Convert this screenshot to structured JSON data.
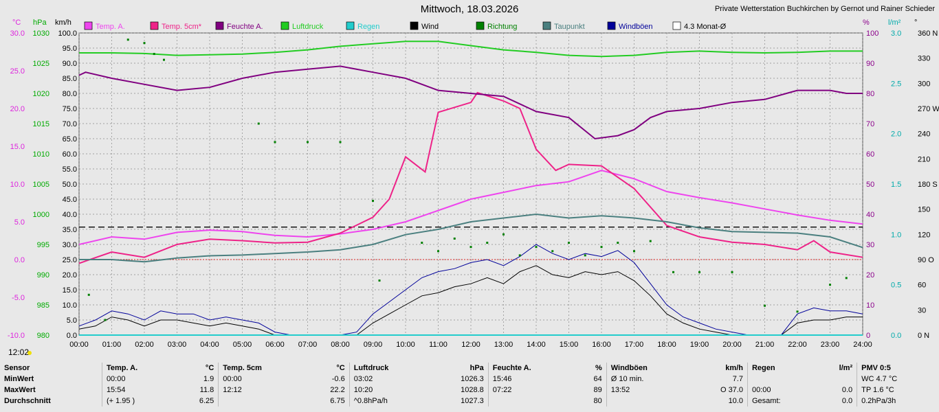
{
  "title": "Mittwoch, 18.03.2026",
  "station": "Private Wetterstation Buchkirchen by Gernot und Rainer Schieder",
  "current_time": "12:02",
  "chart_data": {
    "type": "line",
    "axes": {
      "left_units": [
        "°C",
        "hPa",
        "km/h"
      ],
      "right_units": [
        "%",
        "l/m²",
        "°"
      ],
      "temp": {
        "min": -10,
        "max": 30,
        "ticks": [
          30.0,
          25.0,
          20.0,
          15.0,
          10.0,
          5.0,
          0.0,
          -5.0,
          -10.0
        ],
        "color": "#dd22dd"
      },
      "pressure": {
        "min": 980,
        "max": 1030,
        "ticks": [
          1030,
          1025,
          1020,
          1015,
          1010,
          1005,
          1000,
          995,
          990,
          985,
          980
        ],
        "color": "#00aa00"
      },
      "wind": {
        "min": 0,
        "max": 100,
        "ticks": [
          100.0,
          95.0,
          90.0,
          85.0,
          80.0,
          75.0,
          70.0,
          65.0,
          60.0,
          55.0,
          50.0,
          45.0,
          40.0,
          35.0,
          30.0,
          25.0,
          20.0,
          15.0,
          10.0,
          5.0,
          0.0
        ],
        "color": "#000000"
      },
      "humidity": {
        "min": 0,
        "max": 100,
        "ticks": [
          100,
          90,
          80,
          70,
          60,
          50,
          40,
          30,
          20,
          10,
          0
        ],
        "color": "#8b008b"
      },
      "rain": {
        "min": 0,
        "max": 3,
        "ticks": [
          "3.0",
          "2.5",
          "2.0",
          "1.5",
          "1.0",
          "0.5",
          "0.0"
        ],
        "color": "#00aaaa"
      },
      "direction": {
        "min": 0,
        "max": 360,
        "ticks": [
          "360 N",
          "330",
          "300",
          "270 W",
          "240",
          "210",
          "180 S",
          "150",
          "120",
          "90 O",
          "60",
          "30",
          "0 N"
        ],
        "color": "#006600"
      },
      "x_ticks": [
        "00:00",
        "01:00",
        "02:00",
        "03:00",
        "04:00",
        "05:00",
        "06:00",
        "07:00",
        "08:00",
        "09:00",
        "10:00",
        "11:00",
        "12:00",
        "13:00",
        "14:00",
        "15:00",
        "16:00",
        "17:00",
        "18:00",
        "19:00",
        "20:00",
        "21:00",
        "22:00",
        "23:00",
        "24:00"
      ],
      "grid": true
    },
    "legend": [
      {
        "name": "Temp. A.",
        "color": "#ee44ee"
      },
      {
        "name": "Temp. 5cm*",
        "color": "#ee2288"
      },
      {
        "name": "Feuchte A.",
        "color": "#800080"
      },
      {
        "name": "Luftdruck",
        "color": "#22cc22"
      },
      {
        "name": "Regen",
        "color": "#22cccc"
      },
      {
        "name": "Wind",
        "color": "#000000"
      },
      {
        "name": "Richtung",
        "color": "#008000"
      },
      {
        "name": "Taupunkt",
        "color": "#4a7f7f"
      },
      {
        "name": "Windböen",
        "color": "#000099"
      },
      {
        "name": "4.3 Monat-Ø",
        "color": "#ffffff"
      }
    ],
    "reference_lines": [
      {
        "name": "4.3 Monat-Ø",
        "temp": 4.3
      },
      {
        "name": "0 °C",
        "temp": 0
      }
    ],
    "series": [
      {
        "name": "Temp. A.",
        "axis": "temp",
        "color": "#ee44ee",
        "x": [
          0,
          1,
          2,
          3,
          4,
          5,
          6,
          7,
          8,
          9,
          10,
          11,
          12,
          13,
          14,
          15,
          16,
          17,
          18,
          19,
          20,
          21,
          22,
          23,
          24
        ],
        "y": [
          2.0,
          3.0,
          2.7,
          3.6,
          3.9,
          3.7,
          3.2,
          3.0,
          3.4,
          4.0,
          5.0,
          6.5,
          8.0,
          8.9,
          9.8,
          10.3,
          11.8,
          10.7,
          9.0,
          8.2,
          7.5,
          6.7,
          5.9,
          5.2,
          4.7
        ]
      },
      {
        "name": "Temp. 5cm*",
        "axis": "temp",
        "color": "#ee2288",
        "x": [
          0,
          1,
          2,
          3,
          4,
          5,
          6,
          7,
          8,
          9,
          9.5,
          10,
          10.6,
          11,
          12,
          12.2,
          13,
          13.5,
          14,
          14.6,
          15,
          16,
          17,
          18,
          19,
          20,
          21,
          22,
          22.5,
          23,
          24
        ],
        "y": [
          -0.5,
          1.0,
          0.3,
          2.0,
          2.7,
          2.5,
          2.2,
          2.3,
          3.5,
          5.6,
          8.0,
          13.6,
          11.6,
          19.5,
          20.8,
          22.1,
          21.0,
          20.0,
          14.6,
          11.8,
          12.6,
          12.4,
          9.4,
          4.5,
          3.0,
          2.3,
          2.0,
          1.3,
          2.5,
          1.0,
          0.3
        ]
      },
      {
        "name": "Feuchte A.",
        "axis": "humidity",
        "color": "#800080",
        "x": [
          0,
          0.2,
          1,
          2,
          3,
          4,
          5,
          6,
          7,
          8,
          9,
          10,
          11,
          12,
          13,
          14,
          15,
          15.8,
          16.5,
          17,
          17.5,
          18,
          19,
          20,
          21,
          22,
          23,
          23.5,
          24
        ],
        "y": [
          86,
          87,
          85,
          83,
          81,
          82,
          85,
          87,
          88,
          89,
          87,
          85,
          81,
          80,
          79,
          74,
          72,
          65,
          66,
          68,
          72,
          74,
          75,
          77,
          78,
          81,
          81,
          80,
          80
        ]
      },
      {
        "name": "Luftdruck",
        "axis": "pressure",
        "color": "#22cc22",
        "x": [
          0,
          1,
          2,
          3,
          4,
          5,
          6,
          7,
          8,
          9,
          10,
          11,
          12,
          13,
          14,
          15,
          16,
          17,
          18,
          19,
          20,
          21,
          22,
          23,
          24
        ],
        "y": [
          1026.7,
          1026.7,
          1026.6,
          1026.3,
          1026.4,
          1026.5,
          1026.8,
          1027.2,
          1027.8,
          1028.2,
          1028.6,
          1028.6,
          1027.9,
          1027.2,
          1026.8,
          1026.3,
          1026.1,
          1026.3,
          1026.8,
          1027.0,
          1026.8,
          1026.7,
          1026.8,
          1027.0,
          1027.0
        ]
      },
      {
        "name": "Taupunkt",
        "axis": "temp",
        "color": "#4a7f7f",
        "x": [
          0,
          1,
          2,
          3,
          4,
          5,
          6,
          7,
          8,
          9,
          10,
          11,
          12,
          13,
          14,
          15,
          16,
          17,
          18,
          19,
          20,
          21,
          22,
          23,
          24
        ],
        "y": [
          0.0,
          0.0,
          -0.3,
          0.2,
          0.5,
          0.6,
          0.8,
          1.0,
          1.3,
          2.0,
          3.3,
          4.0,
          5.0,
          5.5,
          6.0,
          5.5,
          5.8,
          5.5,
          5.0,
          4.2,
          3.7,
          3.6,
          3.5,
          3.0,
          1.6
        ]
      },
      {
        "name": "Wind",
        "axis": "wind",
        "color": "#000000",
        "x": [
          0,
          0.5,
          1,
          1.5,
          2,
          2.5,
          3,
          3.5,
          4,
          4.5,
          5,
          5.5,
          6,
          6.5,
          7,
          7.5,
          8,
          8.5,
          9,
          9.5,
          10,
          10.5,
          11,
          11.5,
          12,
          12.5,
          13,
          13.5,
          14,
          14.5,
          15,
          15.5,
          16,
          16.5,
          17,
          17.5,
          18,
          18.5,
          19,
          19.5,
          20,
          20.5,
          21,
          21.5,
          22,
          22.5,
          23,
          23.5,
          24
        ],
        "y": [
          2,
          3,
          6,
          5,
          3,
          5,
          5,
          4,
          3,
          4,
          3,
          2,
          0,
          0,
          0,
          0,
          0,
          0,
          4,
          7,
          10,
          13,
          14,
          16,
          17,
          19,
          17,
          21,
          23,
          20,
          19,
          21,
          20,
          21,
          18,
          13,
          7,
          4,
          2,
          1,
          0,
          0,
          0,
          0,
          4,
          5,
          5,
          6,
          6
        ]
      },
      {
        "name": "Windböen",
        "axis": "wind",
        "color": "#000099",
        "x": [
          0,
          0.5,
          1,
          1.5,
          2,
          2.5,
          3,
          3.5,
          4,
          4.5,
          5,
          5.5,
          6,
          6.5,
          7,
          7.5,
          8,
          8.5,
          9,
          9.5,
          10,
          10.5,
          11,
          11.5,
          12,
          12.5,
          13,
          13.5,
          14,
          14.5,
          15,
          15.5,
          16,
          16.5,
          17,
          17.5,
          18,
          18.5,
          19,
          19.5,
          20,
          20.5,
          21,
          21.5,
          22,
          22.5,
          23,
          23.5,
          24
        ],
        "y": [
          3,
          5,
          8,
          7,
          5,
          8,
          7,
          7,
          5,
          6,
          5,
          4,
          1,
          0,
          0,
          0,
          0,
          1,
          7,
          11,
          15,
          19,
          21,
          22,
          24,
          25,
          23,
          26,
          30,
          27,
          25,
          27,
          26,
          28,
          24,
          17,
          10,
          6,
          4,
          2,
          1,
          0,
          0,
          0,
          7,
          9,
          8,
          8,
          7
        ]
      },
      {
        "name": "Regen",
        "axis": "rain",
        "color": "#22cccc",
        "x": [
          0,
          24
        ],
        "y": [
          0,
          0
        ]
      }
    ],
    "direction_points": {
      "name": "Richtung",
      "axis": "direction",
      "color": "#008000",
      "x": [
        0.3,
        0.8,
        1.5,
        2.0,
        2.3,
        2.6,
        5.5,
        6.0,
        7.0,
        8.0,
        9.0,
        9.2,
        10.5,
        11.0,
        11.5,
        12.0,
        12.5,
        13.0,
        13.5,
        14.0,
        14.5,
        15.0,
        15.5,
        16.0,
        16.5,
        17.0,
        17.5,
        18.2,
        19.0,
        20.0,
        21.0,
        22.0,
        23.0,
        23.5
      ],
      "y": [
        48,
        18,
        352,
        348,
        335,
        328,
        252,
        230,
        230,
        230,
        160,
        65,
        110,
        100,
        115,
        105,
        110,
        120,
        95,
        105,
        100,
        110,
        95,
        105,
        110,
        100,
        112,
        75,
        75,
        75,
        35,
        28,
        60,
        68
      ]
    }
  },
  "stats": {
    "header": [
      "Sensor",
      "Temp. A.",
      "°C",
      "Temp. 5cm",
      "°C",
      "Luftdruck",
      "hPa",
      "Feuchte A.",
      "%",
      "Windböen",
      "km/h",
      "Regen",
      "l/m²",
      "PMV 0:5"
    ],
    "rows": [
      [
        "MinWert",
        "00:00",
        "1.9",
        "00:00",
        "-0.6",
        "03:02",
        "1026.3",
        "15:46",
        "64",
        "Ø 10 min.",
        "7.7",
        "",
        "",
        "WC 4.7 °C"
      ],
      [
        "MaxWert",
        "15:54",
        "11.8",
        "12:12",
        "22.2",
        "10:20",
        "1028.8",
        "07:22",
        "89",
        "13:52",
        "O 37.0",
        "00:00",
        "0.0",
        "TP 1.6 °C"
      ],
      [
        "Durchschnitt",
        "(+ 1.95 )",
        "6.25",
        "",
        "6.75",
        "^0.8hPa/h",
        "1027.3",
        "",
        "80",
        "",
        "10.0",
        "Gesamt:",
        "0.0",
        "0.2hPa/3h"
      ]
    ]
  }
}
